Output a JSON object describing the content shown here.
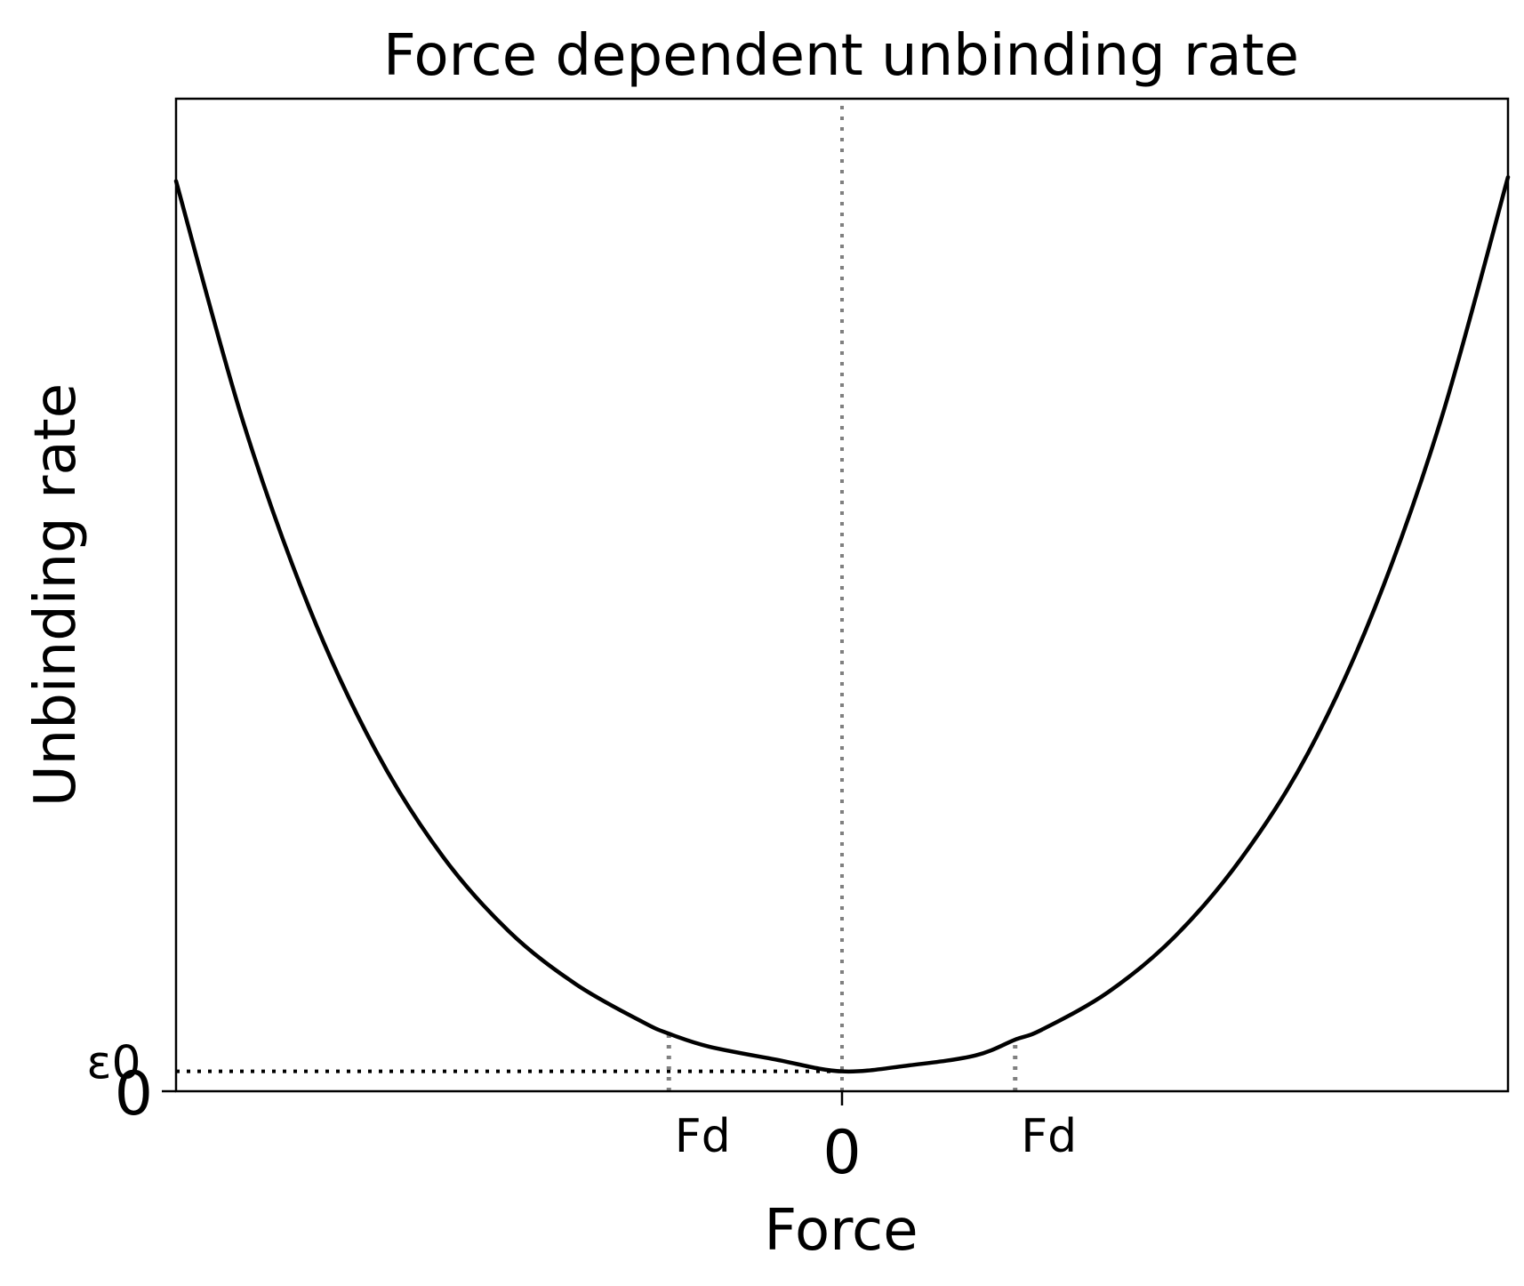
{
  "chart_data": {
    "type": "line",
    "title": "Force dependent unbinding rate",
    "xlabel": "Force",
    "ylabel": "Unbinding rate",
    "xlim": [
      -5,
      5
    ],
    "ylim": [
      0,
      1
    ],
    "x_ticks": [
      {
        "value": 0,
        "label": "0"
      }
    ],
    "y_ticks": [
      {
        "value": 0,
        "label": "0"
      }
    ],
    "series": [
      {
        "color": "#000000",
        "x": [
          -5.0,
          -4.5,
          -4.0,
          -3.5,
          -3.0,
          -2.5,
          -2.0,
          -1.5,
          -1.3,
          -1.0,
          -0.5,
          0.0,
          0.5,
          1.0,
          1.3,
          1.5,
          2.0,
          2.5,
          3.0,
          3.5,
          4.0,
          4.5,
          5.0
        ],
        "y": [
          0.917,
          0.676,
          0.487,
          0.343,
          0.237,
          0.161,
          0.108,
          0.07,
          0.058,
          0.045,
          0.032,
          0.02,
          0.026,
          0.036,
          0.052,
          0.062,
          0.1,
          0.156,
          0.235,
          0.341,
          0.487,
          0.678,
          0.921
        ]
      }
    ],
    "reference_lines": [
      {
        "orientation": "vertical",
        "value": 0,
        "color": "#808080",
        "style": "dotted"
      },
      {
        "orientation": "horizontal",
        "value": 0.02,
        "x_from": -5,
        "x_to": 0,
        "color": "#000000",
        "style": "dotted"
      },
      {
        "orientation": "vertical",
        "value": -1.3,
        "y_from": 0,
        "y_to": 0.058,
        "color": "#808080",
        "style": "dotted"
      },
      {
        "orientation": "vertical",
        "value": 1.3,
        "y_from": 0,
        "y_to": 0.052,
        "color": "#808080",
        "style": "dotted"
      }
    ],
    "annotations": [
      {
        "text": "Fd",
        "x": -1.3,
        "position": "below-axis"
      },
      {
        "text": "Fd",
        "x": 1.3,
        "position": "below-axis"
      },
      {
        "text": "ε0",
        "y": 0.02,
        "position": "left-of-axis"
      }
    ],
    "grid": false,
    "legend": "none"
  }
}
